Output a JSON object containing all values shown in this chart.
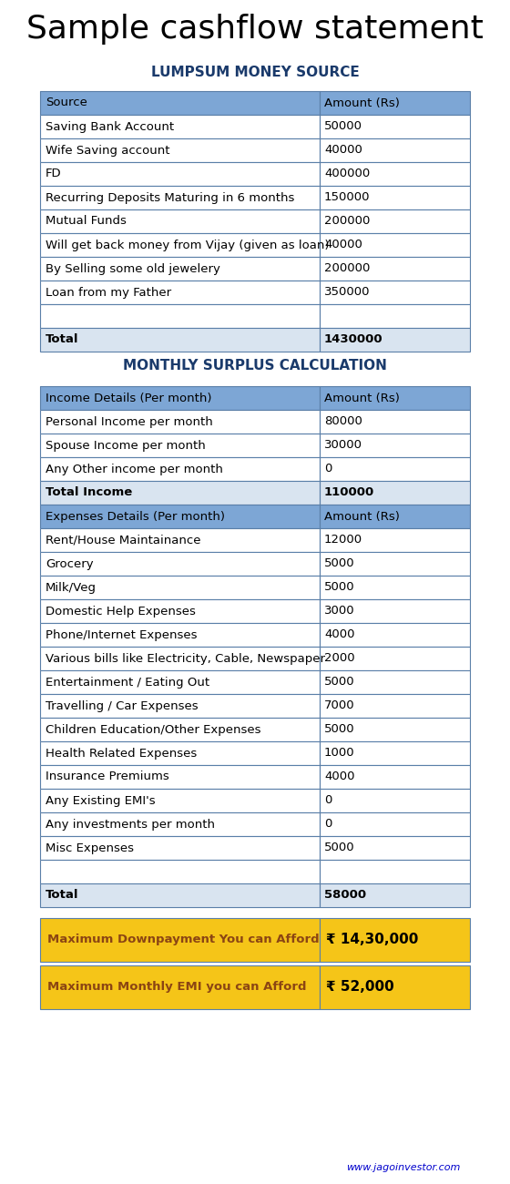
{
  "title": "Sample cashflow statement",
  "section1_title": "LUMPSUM MONEY SOURCE",
  "section1_header": [
    "Source",
    "Amount (Rs)"
  ],
  "section1_rows": [
    [
      "Saving Bank Account",
      "50000"
    ],
    [
      "Wife Saving account",
      "40000"
    ],
    [
      "FD",
      "400000"
    ],
    [
      "Recurring Deposits Maturing in 6 months",
      "150000"
    ],
    [
      "Mutual Funds",
      "200000"
    ],
    [
      "Will get back money from Vijay (given as loan)",
      "40000"
    ],
    [
      "By Selling some old jewelery",
      "200000"
    ],
    [
      "Loan from my Father",
      "350000"
    ],
    [
      "",
      ""
    ],
    [
      "Total",
      "1430000"
    ]
  ],
  "section2_title": "MONTHLY SURPLUS CALCULATION",
  "section2_rows": [
    {
      "label": "Income Details (Per month)",
      "value": "Amount (Rs)",
      "type": "header"
    },
    {
      "label": "Personal Income per month",
      "value": "80000",
      "type": "normal"
    },
    {
      "label": "Spouse Income per month",
      "value": "30000",
      "type": "normal"
    },
    {
      "label": "Any Other income per month",
      "value": "0",
      "type": "normal"
    },
    {
      "label": "Total Income",
      "value": "110000",
      "type": "subtotal"
    },
    {
      "label": "Expenses Details (Per month)",
      "value": "Amount (Rs)",
      "type": "header"
    },
    {
      "label": "Rent/House Maintainance",
      "value": "12000",
      "type": "normal"
    },
    {
      "label": "Grocery",
      "value": "5000",
      "type": "normal"
    },
    {
      "label": "Milk/Veg",
      "value": "5000",
      "type": "normal"
    },
    {
      "label": "Domestic Help Expenses",
      "value": "3000",
      "type": "normal"
    },
    {
      "label": "Phone/Internet Expenses",
      "value": "4000",
      "type": "normal"
    },
    {
      "label": "Various bills like Electricity, Cable, Newspaper",
      "value": "2000",
      "type": "normal"
    },
    {
      "label": "Entertainment / Eating Out",
      "value": "5000",
      "type": "normal"
    },
    {
      "label": "Travelling / Car Expenses",
      "value": "7000",
      "type": "normal"
    },
    {
      "label": "Children Education/Other Expenses",
      "value": "5000",
      "type": "normal"
    },
    {
      "label": "Health Related Expenses",
      "value": "1000",
      "type": "normal"
    },
    {
      "label": "Insurance Premiums",
      "value": "4000",
      "type": "normal"
    },
    {
      "label": "Any Existing EMI's",
      "value": "0",
      "type": "normal"
    },
    {
      "label": "Any investments per month",
      "value": "0",
      "type": "normal"
    },
    {
      "label": "Misc Expenses",
      "value": "5000",
      "type": "normal"
    },
    {
      "label": "",
      "value": "",
      "type": "empty"
    },
    {
      "label": "Total",
      "value": "58000",
      "type": "subtotal"
    }
  ],
  "summary_rows": [
    {
      "label": "Maximum Downpayment You can Afford",
      "value": "₹ 14,30,000",
      "bg": "#F5C518"
    },
    {
      "label": "Maximum Monthly EMI you can Afford",
      "value": "₹ 52,000",
      "bg": "#F5C518"
    }
  ],
  "colors": {
    "header_bg": "#7DA6D5",
    "header_text": "#1a1a2e",
    "subtotal_bg": "#D9E4F0",
    "subtotal_text_bold": true,
    "normal_bg": "#FFFFFF",
    "border": "#5A7FA8",
    "title_color": "#000000",
    "section_title_color": "#1a3a6b",
    "summary_bg": "#F5C518",
    "summary_label_color": "#8B4513",
    "summary_value_color": "#000000",
    "website_color": "#0000CC"
  },
  "website": "www.jagoinvestor.com"
}
